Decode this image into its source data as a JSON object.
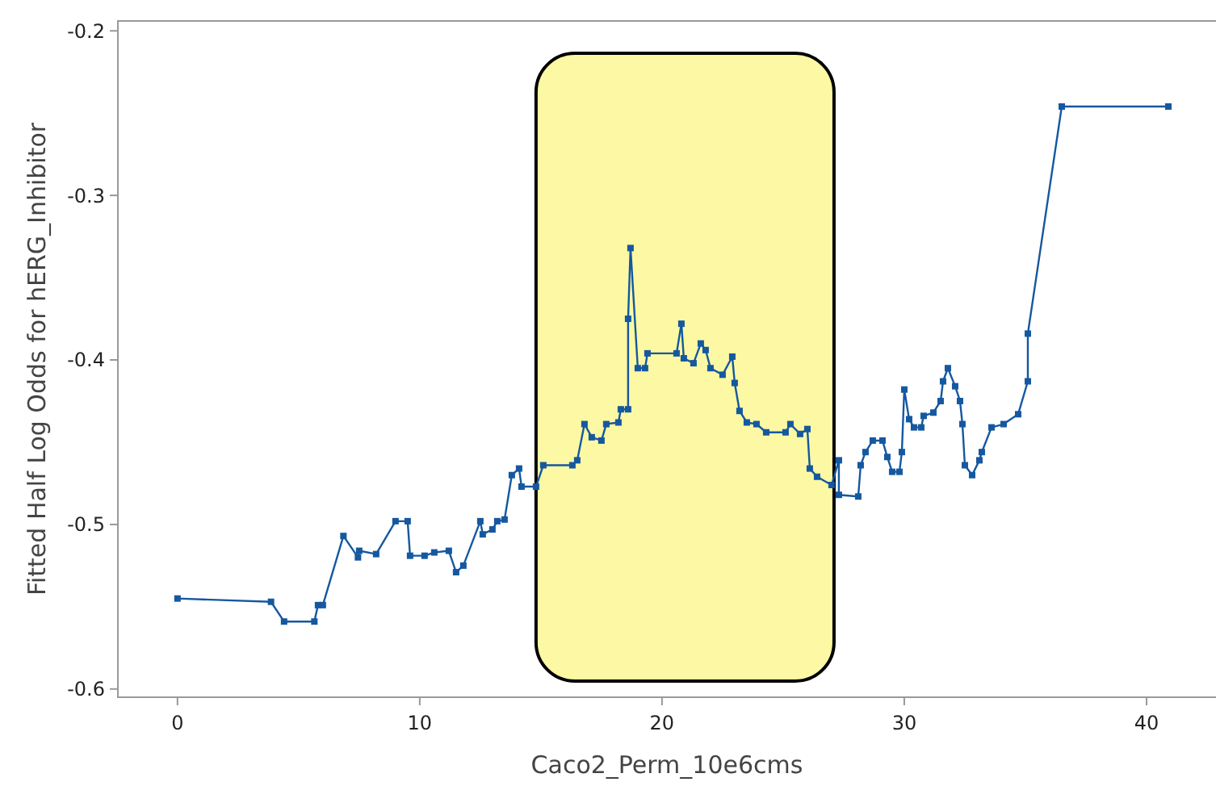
{
  "chart_data": {
    "type": "line",
    "xlabel": "Caco2_Perm_10e6cms",
    "ylabel": "Fitted Half Log Odds for hERG_Inhibitor",
    "xlim": [
      -2.46,
      42.8
    ],
    "ylim": [
      -0.605,
      -0.194
    ],
    "xticks": [
      0,
      10,
      20,
      30,
      40
    ],
    "yticks": [
      -0.6,
      -0.5,
      -0.4,
      -0.3,
      -0.2
    ],
    "grid": false,
    "marker": "square",
    "line_style": "solid",
    "bands": [
      {
        "axis": "x",
        "from": 14.8,
        "to": 27.1,
        "color": "#fbf68c"
      }
    ],
    "series": [
      {
        "color": "#1558a0",
        "x": [
          0,
          3.86,
          4.4,
          5.65,
          5.8,
          6.0,
          6.85,
          7.45,
          7.5,
          8.2,
          9.0,
          9.5,
          9.6,
          10.2,
          10.6,
          11.2,
          11.5,
          11.8,
          12.5,
          12.6,
          13.0,
          13.2,
          13.5,
          13.8,
          14.1,
          14.2,
          14.8,
          15.1,
          16.3,
          16.5,
          16.8,
          17.1,
          17.5,
          17.7,
          18.2,
          18.3,
          18.6,
          18.6,
          18.7,
          19.0,
          19.3,
          19.4,
          20.6,
          20.8,
          20.9,
          21.3,
          21.6,
          21.8,
          22.0,
          22.5,
          22.9,
          23.0,
          23.2,
          23.5,
          23.9,
          24.3,
          25.1,
          25.3,
          25.7,
          26.0,
          26.1,
          26.4,
          27.0,
          27.3,
          27.3,
          28.1,
          28.2,
          28.4,
          28.7,
          29.1,
          29.3,
          29.5,
          29.8,
          29.9,
          30.0,
          30.2,
          30.4,
          30.7,
          30.8,
          31.2,
          31.5,
          31.6,
          31.8,
          32.1,
          32.3,
          32.4,
          32.5,
          32.8,
          33.1,
          33.2,
          33.6,
          34.1,
          34.7,
          35.1,
          35.1,
          36.5,
          40.9
        ],
        "values": [
          -0.545,
          -0.547,
          -0.559,
          -0.559,
          -0.549,
          -0.549,
          -0.507,
          -0.52,
          -0.516,
          -0.518,
          -0.498,
          -0.498,
          -0.519,
          -0.519,
          -0.517,
          -0.516,
          -0.529,
          -0.525,
          -0.498,
          -0.506,
          -0.503,
          -0.498,
          -0.497,
          -0.47,
          -0.466,
          -0.477,
          -0.477,
          -0.464,
          -0.464,
          -0.461,
          -0.439,
          -0.447,
          -0.449,
          -0.439,
          -0.438,
          -0.43,
          -0.43,
          -0.375,
          -0.332,
          -0.405,
          -0.405,
          -0.396,
          -0.396,
          -0.378,
          -0.399,
          -0.402,
          -0.39,
          -0.394,
          -0.405,
          -0.409,
          -0.398,
          -0.414,
          -0.431,
          -0.438,
          -0.439,
          -0.444,
          -0.444,
          -0.439,
          -0.445,
          -0.442,
          -0.466,
          -0.471,
          -0.476,
          -0.461,
          -0.482,
          -0.483,
          -0.464,
          -0.456,
          -0.449,
          -0.449,
          -0.459,
          -0.468,
          -0.468,
          -0.456,
          -0.418,
          -0.436,
          -0.441,
          -0.441,
          -0.434,
          -0.432,
          -0.425,
          -0.413,
          -0.405,
          -0.416,
          -0.425,
          -0.439,
          -0.464,
          -0.47,
          -0.461,
          -0.456,
          -0.441,
          -0.439,
          -0.433,
          -0.413,
          -0.384,
          -0.246,
          -0.246
        ]
      }
    ]
  }
}
